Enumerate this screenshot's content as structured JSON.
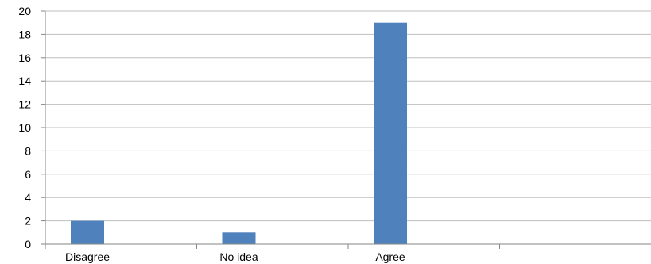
{
  "chart_data": {
    "type": "bar",
    "categories": [
      "Disagree",
      "No idea",
      "Agree",
      ""
    ],
    "values": [
      2,
      1,
      19,
      null
    ],
    "title": "",
    "xlabel": "",
    "ylabel": "",
    "ylim": [
      0,
      20
    ],
    "yticks": [
      0,
      2,
      4,
      6,
      8,
      10,
      12,
      14,
      16,
      18,
      20
    ],
    "grid": true,
    "legend": "none",
    "bar_color": "#4f81bd",
    "grid_color": "#bfbfbf"
  }
}
